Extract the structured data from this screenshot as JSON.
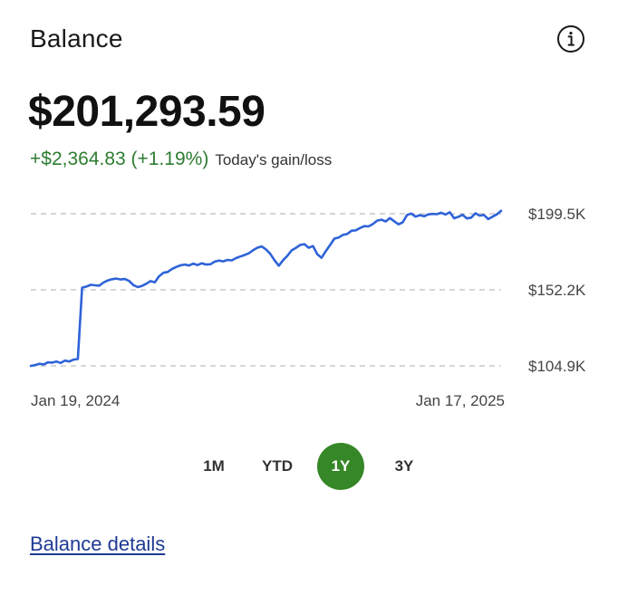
{
  "header": {
    "title": "Balance",
    "info_icon": "info-circle-icon"
  },
  "summary": {
    "balance": "$201,293.59",
    "gain": "+$2,364.83 (+1.19%)",
    "gain_label": "Today's gain/loss",
    "gain_color": "#2e7d32"
  },
  "chart_data": {
    "type": "line",
    "x_start_label": "Jan 19, 2024",
    "x_end_label": "Jan 17, 2025",
    "y_tick_labels": [
      "$199.5K",
      "$152.2K",
      "$104.9K"
    ],
    "y_ticks": [
      199500,
      152200,
      104900
    ],
    "ylim": [
      104900,
      199500
    ],
    "grid": "horizontal dashed",
    "line_color": "#2f63d8",
    "series": [
      {
        "values": [
          104900,
          105400,
          106200,
          105800,
          107100,
          106900,
          107600,
          106700,
          108200,
          107600,
          108800,
          109200,
          153500,
          154200,
          155300,
          155000,
          154800,
          156700,
          158000,
          158800,
          159200,
          158600,
          158900,
          157700,
          155100,
          153900,
          154600,
          156000,
          157600,
          156900,
          160600,
          162800,
          163300,
          165100,
          166400,
          167400,
          167900,
          167300,
          168500,
          167600,
          168700,
          167900,
          168100,
          169700,
          170400,
          169900,
          170800,
          170500,
          171900,
          172900,
          173800,
          174900,
          176800,
          178400,
          179200,
          177300,
          174600,
          170600,
          167200,
          170600,
          173300,
          176700,
          178200,
          180100,
          180600,
          178300,
          179400,
          174400,
          172100,
          176300,
          180100,
          184000,
          184700,
          186300,
          186900,
          188900,
          189200,
          190600,
          191800,
          191600,
          193100,
          195200,
          195800,
          194700,
          196800,
          194800,
          192900,
          194200,
          198700,
          199600,
          197700,
          198600,
          197900,
          199100,
          199400,
          199200,
          200100,
          199000,
          200400,
          196700,
          197600,
          198800,
          196600,
          197100,
          199800,
          198300,
          198700,
          196200,
          197700,
          199100,
          201300
        ]
      }
    ]
  },
  "ranges": {
    "items": [
      {
        "label": "1M",
        "active": false
      },
      {
        "label": "YTD",
        "active": false
      },
      {
        "label": "1Y",
        "active": true
      },
      {
        "label": "3Y",
        "active": false
      }
    ],
    "active_color": "#368727"
  },
  "links": {
    "balance_details": "Balance details"
  }
}
